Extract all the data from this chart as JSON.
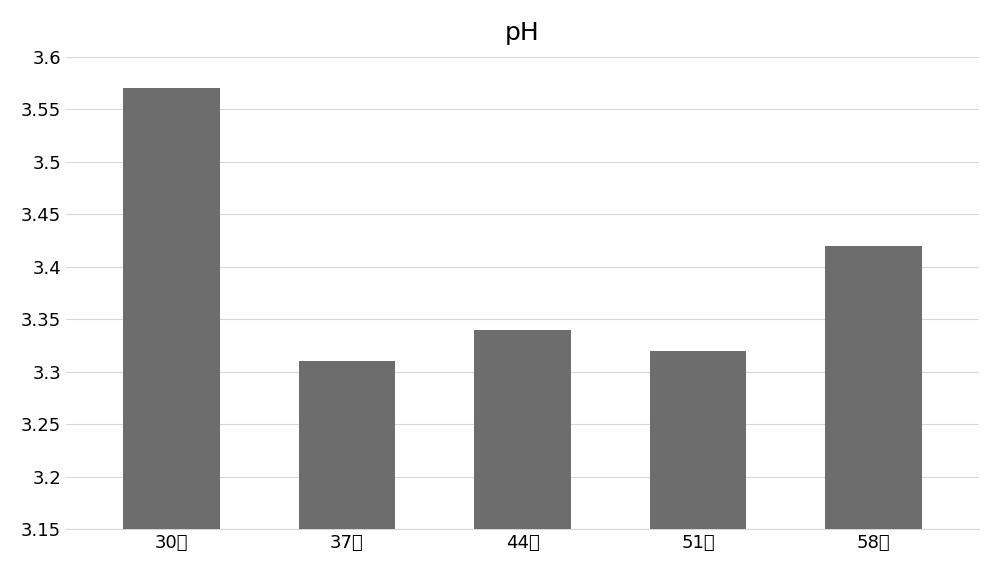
{
  "title": "pH",
  "categories": [
    "30天",
    "37天",
    "44天",
    "51天",
    "58天"
  ],
  "values": [
    3.57,
    3.31,
    3.34,
    3.32,
    3.42
  ],
  "bar_color": "#6d6d6d",
  "ylim": [
    3.15,
    3.6
  ],
  "yticks": [
    3.15,
    3.2,
    3.25,
    3.3,
    3.35,
    3.4,
    3.45,
    3.5,
    3.55,
    3.6
  ],
  "background_color": "#ffffff",
  "grid_color": "#d8d8d8",
  "title_fontsize": 18,
  "tick_fontsize": 13,
  "bar_width": 0.55
}
